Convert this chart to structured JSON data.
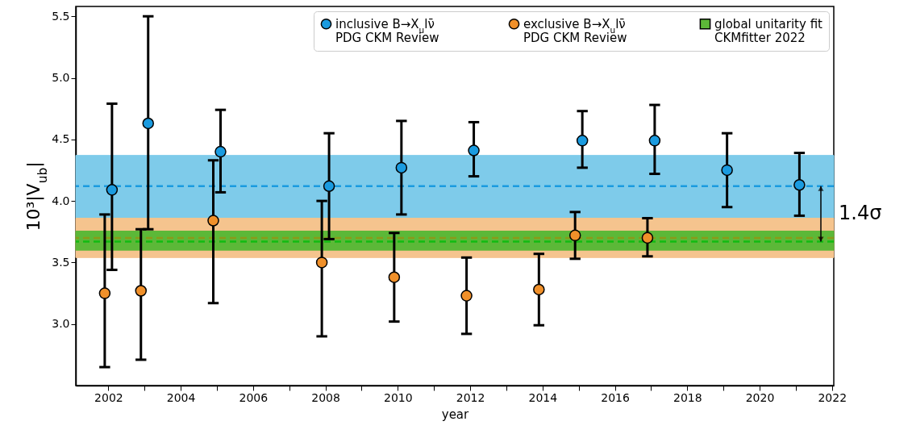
{
  "chart_data": {
    "type": "scatter",
    "xlabel": "year",
    "ylabel": "10³|V$_{ub}$|",
    "xlim": [
      2001.1,
      2022.05
    ],
    "ylim": [
      2.5,
      5.58
    ],
    "xticks": [
      2002,
      {
        "value": 2003,
        "label": null
      },
      2004,
      {
        "value": 2005,
        "label": null
      },
      2006,
      {
        "value": 2007,
        "label": null
      },
      2008,
      {
        "value": 2009,
        "label": null
      },
      2010,
      {
        "value": 2011,
        "label": null
      },
      2012,
      {
        "value": 2013,
        "label": null
      },
      2014,
      {
        "value": 2015,
        "label": null
      },
      2016,
      {
        "value": 2017,
        "label": null
      },
      2018,
      {
        "value": 2019,
        "label": null
      },
      2020,
      {
        "value": 2021,
        "label": null
      },
      2022
    ],
    "yticks": [
      {
        "value": 3,
        "label": "3.0"
      },
      3.5,
      {
        "value": 4,
        "label": "4.0"
      },
      4.5,
      {
        "value": 5,
        "label": "5.0"
      },
      5.5
    ],
    "series": [
      {
        "name": "inclusive B→X$_{u}$lν̄\nPDG CKM Review",
        "color": "#1a9be0",
        "x": [
          2002.1,
          2003.1,
          2005.1,
          2008.1,
          2010.1,
          2012.1,
          2015.1,
          2017.1,
          2019.1,
          2021.1
        ],
        "values": [
          4.09,
          4.63,
          4.4,
          4.12,
          4.27,
          4.41,
          4.49,
          4.49,
          4.25,
          4.13
        ],
        "errors": [
          [
            3.44,
            4.79
          ],
          [
            3.77,
            5.5
          ],
          [
            4.07,
            4.74
          ],
          [
            3.69,
            4.55
          ],
          [
            3.89,
            4.65
          ],
          [
            4.2,
            4.64
          ],
          [
            4.27,
            4.73
          ],
          [
            4.22,
            4.78
          ],
          [
            3.95,
            4.55
          ],
          [
            3.88,
            4.39
          ]
        ]
      },
      {
        "name": "exclusive B→X$_{u}$lν̄\nPDG CKM Review",
        "color": "#f0902a",
        "x": [
          2001.9,
          2002.9,
          2004.9,
          2007.9,
          2009.9,
          2011.9,
          2013.9,
          2014.9,
          2016.9
        ],
        "values": [
          3.25,
          3.27,
          3.84,
          3.5,
          3.38,
          3.23,
          3.28,
          3.72,
          3.7
        ],
        "errors": [
          [
            2.65,
            3.89
          ],
          [
            2.71,
            3.77
          ],
          [
            3.17,
            4.33
          ],
          [
            2.9,
            4.0
          ],
          [
            3.02,
            3.74
          ],
          [
            2.92,
            3.54
          ],
          [
            2.99,
            3.57
          ],
          [
            3.53,
            3.91
          ],
          [
            3.55,
            3.86
          ]
        ]
      }
    ],
    "bands": [
      {
        "axis": "y",
        "from": 3.86,
        "to": 4.37,
        "color": "#7ecbea"
      },
      {
        "axis": "y",
        "from": 3.54,
        "to": 3.86,
        "color": "#f5c48e"
      },
      {
        "axis": "y",
        "from": 3.6,
        "to": 3.755,
        "color": "#5cb838",
        "label": "global unitarity fit\nCKMfitter 2022"
      }
    ],
    "ref_lines": [
      {
        "axis": "y",
        "value": 4.12,
        "color": "#1a9be0",
        "line_style": "dashed"
      },
      {
        "axis": "y",
        "value": 3.7,
        "color": "#8a9a1a",
        "line_style": "dashed"
      },
      {
        "axis": "y",
        "value": 3.67,
        "color": "#12bb12",
        "line_style": "dashed"
      }
    ],
    "annotations": [
      "1.4σ"
    ],
    "marker": "circle",
    "grid": false,
    "legend": "top right"
  }
}
